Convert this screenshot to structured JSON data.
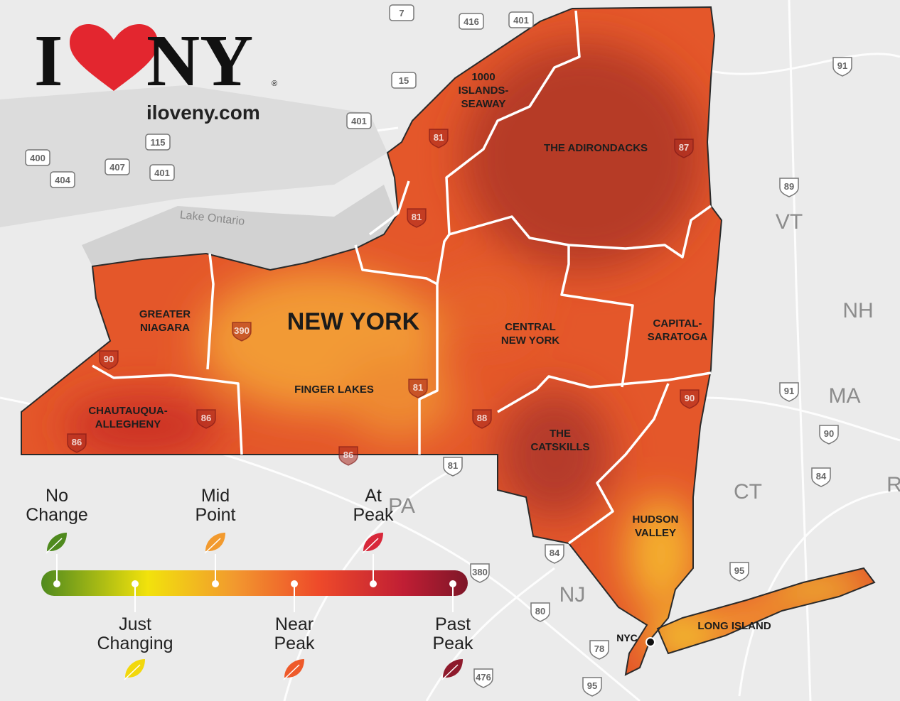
{
  "logo": {
    "i": "I",
    "ny": "NY",
    "registered": "®"
  },
  "url": "iloveny.com",
  "state_label": "NEW YORK",
  "water_label": "Lake Ontario",
  "city_label": "NYC",
  "regions": [
    {
      "lines": [
        "1000",
        "ISLANDS-",
        "SEAWAY"
      ]
    },
    {
      "lines": [
        "THE ADIRONDACKS"
      ]
    },
    {
      "lines": [
        "GREATER",
        "NIAGARA"
      ]
    },
    {
      "lines": [
        "CENTRAL",
        "NEW YORK"
      ]
    },
    {
      "lines": [
        "CAPITAL-",
        "SARATOGA"
      ]
    },
    {
      "lines": [
        "FINGER LAKES"
      ]
    },
    {
      "lines": [
        "CHAUTAUQUA-",
        "ALLEGHENY"
      ]
    },
    {
      "lines": [
        "THE",
        "CATSKILLS"
      ]
    },
    {
      "lines": [
        "HUDSON",
        "VALLEY"
      ]
    },
    {
      "lines": [
        "LONG ISLAND"
      ]
    }
  ],
  "neighbors": [
    "VT",
    "NH",
    "MA",
    "CT",
    "R",
    "PA",
    "NJ"
  ],
  "highways": [
    "7",
    "416",
    "401",
    "15",
    "401",
    "400",
    "404",
    "407",
    "115",
    "401",
    "91",
    "89",
    "91",
    "90",
    "84",
    "95",
    "380",
    "84",
    "80",
    "78",
    "95",
    "476",
    "81",
    "81",
    "87",
    "390",
    "90",
    "86",
    "86",
    "86",
    "81",
    "88",
    "81",
    "90"
  ],
  "legend": {
    "stages": [
      {
        "lines": [
          "No",
          "Change"
        ],
        "color": "#4f8a1e"
      },
      {
        "lines": [
          "Just",
          "Changing"
        ],
        "color": "#f2d80c"
      },
      {
        "lines": [
          "Mid",
          "Point"
        ],
        "color": "#f29a2e"
      },
      {
        "lines": [
          "Near",
          "Peak"
        ],
        "color": "#ee5a2a"
      },
      {
        "lines": [
          "At",
          "Peak"
        ],
        "color": "#d8283a"
      },
      {
        "lines": [
          "Past",
          "Peak"
        ],
        "color": "#8e1a2c"
      }
    ]
  }
}
